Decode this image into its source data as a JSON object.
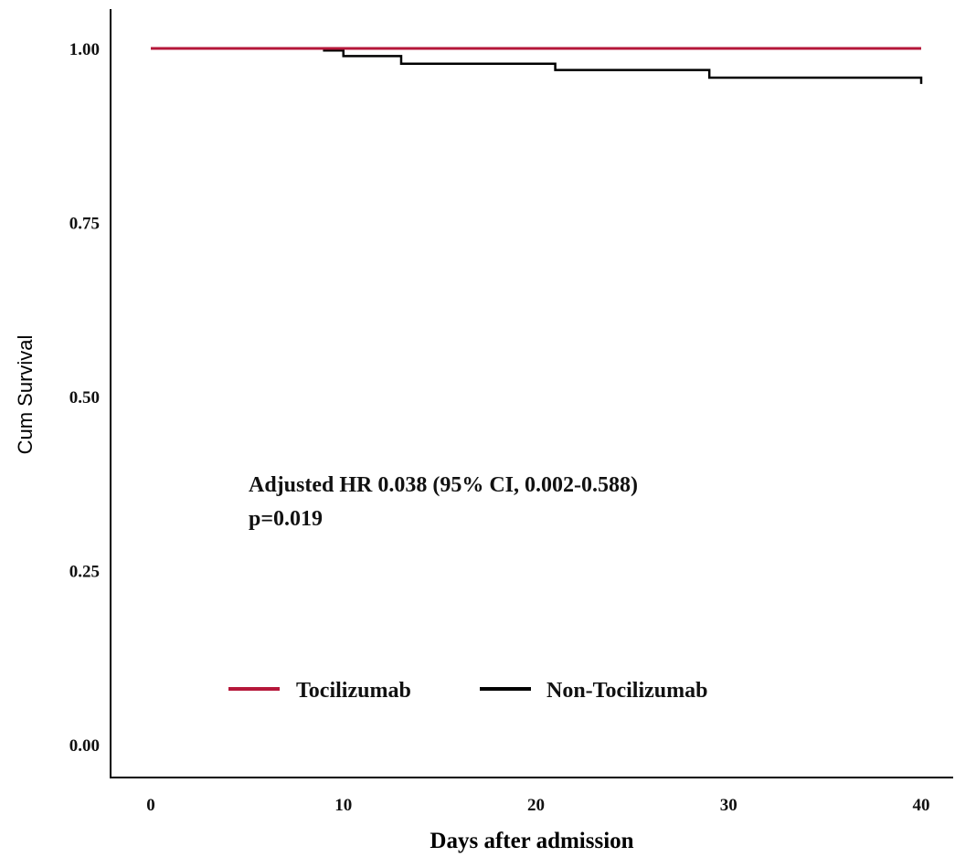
{
  "chart_data": {
    "type": "line",
    "step": true,
    "xlabel": "Days after admission",
    "ylabel": "Cum Survival",
    "xlim": [
      -1,
      41
    ],
    "ylim": [
      -0.05,
      1.05
    ],
    "x_ticks": [
      0,
      10,
      20,
      30,
      40
    ],
    "x_tick_labels": [
      "0",
      "10",
      "20",
      "30",
      "40"
    ],
    "y_ticks": [
      0,
      0.25,
      0.5,
      0.75,
      1.0
    ],
    "y_tick_labels": [
      "0.00",
      "0.25",
      "0.50",
      "0.75",
      "1.00"
    ],
    "grid": false,
    "legend_position": "bottom-center",
    "series": [
      {
        "name": "Tocilizumab",
        "color": "#b5173a",
        "x": [
          0,
          40
        ],
        "y": [
          1.0,
          1.0
        ]
      },
      {
        "name": "Non-Tocilizumab",
        "color": "#000000",
        "x": [
          0,
          9,
          10,
          13,
          21,
          29,
          40
        ],
        "y": [
          1.0,
          0.997,
          0.989,
          0.978,
          0.969,
          0.958,
          0.949
        ]
      }
    ],
    "annotations": [
      "Adjusted HR 0.038 (95% CI, 0.002-0.588)",
      "p=0.019"
    ]
  }
}
